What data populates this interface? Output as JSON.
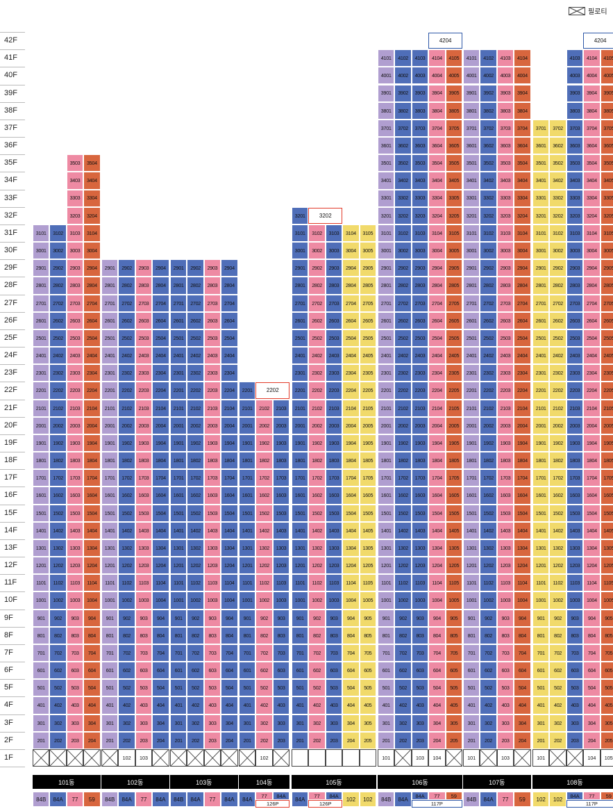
{
  "legend": {
    "label": "필로티",
    "icon": "piloti-x-icon"
  },
  "colors": {
    "lavender": "#b09ed0",
    "blue": "#4f6eb8",
    "pink": "#ee8aa3",
    "orange": "#d8663e",
    "yellow": "#f1da6b",
    "piloti_border": "#444444",
    "highlight_red": "#e23b2a",
    "highlight_blue": "#2b56a6"
  },
  "floors": [
    "42F",
    "41F",
    "40F",
    "39F",
    "38F",
    "37F",
    "36F",
    "35F",
    "34F",
    "33F",
    "32F",
    "31F",
    "30F",
    "29F",
    "28F",
    "27F",
    "26F",
    "25F",
    "24F",
    "23F",
    "22F",
    "21F",
    "20F",
    "19F",
    "18F",
    "17F",
    "16F",
    "15F",
    "14F",
    "13F",
    "12F",
    "11F",
    "10F",
    "9F",
    "8F",
    "7F",
    "6F",
    "5F",
    "4F",
    "3F",
    "2F",
    "1F"
  ],
  "buildings": [
    {
      "name": "101동",
      "lines": [
        {
          "n": 1,
          "top": 31,
          "color": "lavender"
        },
        {
          "n": 2,
          "top": 31,
          "color": "blue"
        },
        {
          "n": 3,
          "top": 35,
          "color": "pink"
        },
        {
          "n": 4,
          "top": 35,
          "color": "orange"
        }
      ],
      "first_floor": [
        "X",
        "X",
        "X",
        "X"
      ],
      "types": [
        {
          "t": "84B",
          "color": "lavender"
        },
        {
          "t": "84A",
          "color": "blue"
        },
        {
          "t": "77",
          "color": "pink"
        },
        {
          "t": "59",
          "color": "orange"
        }
      ]
    },
    {
      "name": "102동",
      "lines": [
        {
          "n": 1,
          "top": 29,
          "color": "lavender"
        },
        {
          "n": 2,
          "top": 29,
          "color": "blue"
        },
        {
          "n": 3,
          "top": 29,
          "color": "pink"
        },
        {
          "n": 4,
          "top": 29,
          "color": "blue"
        }
      ],
      "first_floor": [
        "X",
        "102",
        "103",
        "X"
      ],
      "types": [
        {
          "t": "84B",
          "color": "lavender"
        },
        {
          "t": "84A",
          "color": "blue"
        },
        {
          "t": "77",
          "color": "pink"
        },
        {
          "t": "84A",
          "color": "blue"
        }
      ]
    },
    {
      "name": "103동",
      "lines": [
        {
          "n": 1,
          "top": 29,
          "color": "blue"
        },
        {
          "n": 2,
          "top": 29,
          "color": "blue"
        },
        {
          "n": 3,
          "top": 29,
          "color": "pink"
        },
        {
          "n": 4,
          "top": 29,
          "color": "blue"
        }
      ],
      "first_floor": [
        "X",
        "X",
        "X",
        "X"
      ],
      "types": [
        {
          "t": "84B",
          "color": "blue"
        },
        {
          "t": "84A",
          "color": "blue"
        },
        {
          "t": "77",
          "color": "pink"
        },
        {
          "t": "84A",
          "color": "blue"
        }
      ]
    },
    {
      "name": "104동",
      "lines": [
        {
          "n": 1,
          "top": 22,
          "color": "blue"
        },
        {
          "n": 2,
          "top": 21,
          "color": "pink"
        },
        {
          "n": 3,
          "top": 21,
          "color": "blue"
        }
      ],
      "first_floor": [
        "X",
        "102",
        "X"
      ],
      "penthouse": [
        {
          "label": "2202",
          "floor": 22,
          "lines": [
            2,
            3
          ],
          "border": "red"
        }
      ],
      "types": [
        {
          "t": "84A",
          "color": "blue",
          "span": 1
        },
        {
          "t": "77",
          "color": "pink",
          "span": 1
        },
        {
          "t": "84A",
          "color": "blue",
          "span": 1
        }
      ],
      "type_footer": {
        "label": "126P",
        "lines": [
          2,
          3
        ],
        "border": "red"
      }
    },
    {
      "name": "105동",
      "lines": [
        {
          "n": 1,
          "top": 32,
          "color": "blue"
        },
        {
          "n": 2,
          "top": 31,
          "color": "pink"
        },
        {
          "n": 3,
          "top": 31,
          "color": "blue"
        },
        {
          "n": 4,
          "top": 31,
          "color": "yellow"
        },
        {
          "n": 5,
          "top": 31,
          "color": "yellow"
        }
      ],
      "first_floor": [
        "",
        "",
        "",
        "",
        ""
      ],
      "penthouse": [
        {
          "label": "3202",
          "floor": 32,
          "lines": [
            2,
            3
          ],
          "border": "red"
        }
      ],
      "types": [
        {
          "t": "84A",
          "color": "blue"
        },
        {
          "t": "77",
          "color": "pink"
        },
        {
          "t": "84A",
          "color": "blue"
        },
        {
          "t": "102",
          "color": "yellow"
        },
        {
          "t": "102",
          "color": "yellow"
        }
      ],
      "type_footer": {
        "label": "126P",
        "lines": [
          2,
          3
        ],
        "border": "red"
      }
    },
    {
      "name": "106동",
      "lines": [
        {
          "n": 1,
          "top": 41,
          "color": "lavender"
        },
        {
          "n": 2,
          "top": 41,
          "color": "blue"
        },
        {
          "n": 3,
          "top": 41,
          "color": "blue"
        },
        {
          "n": 4,
          "top": 41,
          "color": "pink"
        },
        {
          "n": 5,
          "top": 41,
          "color": "orange"
        }
      ],
      "first_floor": [
        "101",
        "X",
        "103",
        "104",
        "X"
      ],
      "penthouse": [
        {
          "label": "4204",
          "floor": 42,
          "lines": [
            4,
            5
          ],
          "border": "blue"
        }
      ],
      "types": [
        {
          "t": "84B",
          "color": "lavender"
        },
        {
          "t": "84A",
          "color": "blue"
        },
        {
          "t": "84A",
          "color": "blue"
        },
        {
          "t": "77",
          "color": "pink"
        },
        {
          "t": "59",
          "color": "orange"
        }
      ],
      "type_footer": {
        "label": "117P",
        "lines": [
          3,
          5
        ],
        "border": "blue"
      }
    },
    {
      "name": "107동",
      "lines": [
        {
          "n": 1,
          "top": 41,
          "color": "lavender"
        },
        {
          "n": 2,
          "top": 41,
          "color": "blue"
        },
        {
          "n": 3,
          "top": 41,
          "color": "pink"
        },
        {
          "n": 4,
          "top": 41,
          "color": "orange"
        }
      ],
      "first_floor": [
        "101",
        "X",
        "103",
        "X"
      ],
      "types": [
        {
          "t": "84B",
          "color": "lavender"
        },
        {
          "t": "84A",
          "color": "blue"
        },
        {
          "t": "77",
          "color": "pink"
        },
        {
          "t": "59",
          "color": "orange"
        }
      ]
    },
    {
      "name": "108동",
      "lines": [
        {
          "n": 1,
          "top": 37,
          "color": "yellow"
        },
        {
          "n": 2,
          "top": 37,
          "color": "yellow"
        },
        {
          "n": 3,
          "top": 41,
          "color": "blue"
        },
        {
          "n": 4,
          "top": 41,
          "color": "pink"
        },
        {
          "n": 5,
          "top": 41,
          "color": "orange"
        }
      ],
      "first_floor": [
        "101",
        "X",
        "X",
        "104",
        "105"
      ],
      "penthouse": [
        {
          "label": "4204",
          "floor": 42,
          "lines": [
            4,
            5
          ],
          "border": "blue"
        }
      ],
      "types": [
        {
          "t": "102",
          "color": "yellow"
        },
        {
          "t": "102",
          "color": "yellow"
        },
        {
          "t": "84A",
          "color": "blue"
        },
        {
          "t": "77",
          "color": "pink"
        },
        {
          "t": "59",
          "color": "orange"
        }
      ],
      "type_footer": {
        "label": "117P",
        "lines": [
          3,
          5
        ],
        "border": "blue"
      }
    }
  ]
}
